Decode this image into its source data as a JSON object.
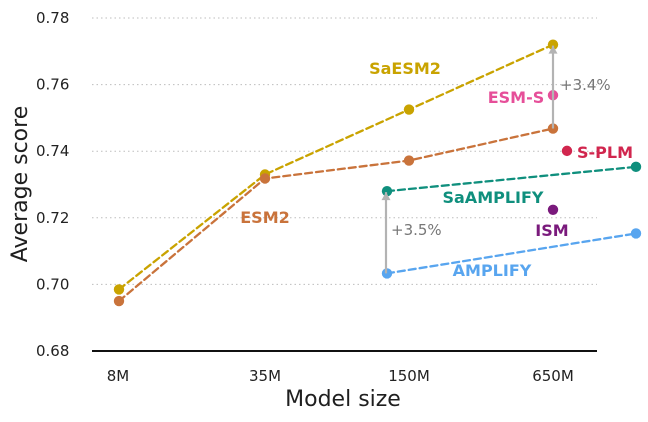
{
  "chart_data": {
    "type": "line",
    "xlabel": "Model size",
    "ylabel": "Average score",
    "categories": [
      "8M",
      "35M",
      "150M",
      "650M"
    ],
    "ylim": [
      0.68,
      0.78
    ],
    "yticks": [
      "0.68",
      "0.70",
      "0.72",
      "0.74",
      "0.76",
      "0.78"
    ],
    "grid": true,
    "series": [
      {
        "name": "SaESM2",
        "color": "#c9a300",
        "points": [
          {
            "x": "8M",
            "y": 0.6985
          },
          {
            "x": "35M",
            "y": 0.733
          },
          {
            "x": "150M",
            "y": 0.7525
          },
          {
            "x": "650M",
            "y": 0.772
          }
        ]
      },
      {
        "name": "ESM2",
        "color": "#c9733b",
        "points": [
          {
            "x": "8M",
            "y": 0.695
          },
          {
            "x": "35M",
            "y": 0.7318
          },
          {
            "x": "150M",
            "y": 0.7372
          },
          {
            "x": "650M",
            "y": 0.7468
          }
        ]
      },
      {
        "name": "SaAMPLIFY",
        "color": "#0f8f7d",
        "points": [
          {
            "x": "150M",
            "y": 0.728
          },
          {
            "x": "650M",
            "y": 0.7353
          }
        ]
      },
      {
        "name": "AMPLIFY",
        "color": "#58a5ef",
        "points": [
          {
            "x": "150M",
            "y": 0.7033
          },
          {
            "x": "650M",
            "y": 0.7153
          }
        ]
      }
    ],
    "single_points": [
      {
        "name": "ESM-S",
        "x": "650M",
        "y": 0.7568,
        "color": "#e64f99"
      },
      {
        "name": "S-PLM",
        "x": "650M",
        "y": 0.7401,
        "color": "#d1264e"
      },
      {
        "name": "ISM",
        "x": "650M",
        "y": 0.7224,
        "color": "#7a1a7c"
      }
    ],
    "annotations": [
      {
        "text": "+3.4%"
      },
      {
        "text": "+3.5%"
      }
    ]
  }
}
